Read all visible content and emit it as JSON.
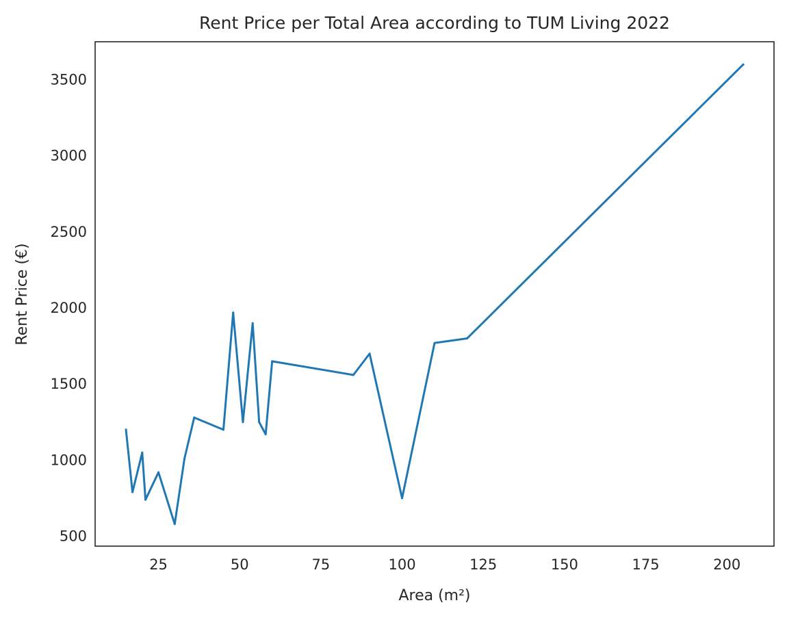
{
  "chart_data": {
    "type": "line",
    "title": "Rent Price per Total Area according to TUM Living 2022",
    "xlabel": "Area (m²)",
    "ylabel": "Rent Price (€)",
    "xlim": [
      5.5,
      214.5
    ],
    "ylim": [
      435,
      3750
    ],
    "xticks": [
      25,
      50,
      75,
      100,
      125,
      150,
      175,
      200
    ],
    "yticks": [
      500,
      1000,
      1500,
      2000,
      2500,
      3000,
      3500
    ],
    "grid": false,
    "series": [
      {
        "color": "#1f77b4",
        "x": [
          15,
          17,
          20,
          21,
          25,
          30,
          33,
          36,
          45,
          48,
          51,
          54,
          56,
          58,
          60,
          85,
          90,
          100,
          110,
          120,
          205
        ],
        "y": [
          1200,
          790,
          1050,
          740,
          920,
          580,
          1010,
          1280,
          1200,
          1970,
          1250,
          1900,
          1250,
          1170,
          1650,
          1560,
          1700,
          750,
          1770,
          1800,
          3600
        ]
      }
    ]
  }
}
